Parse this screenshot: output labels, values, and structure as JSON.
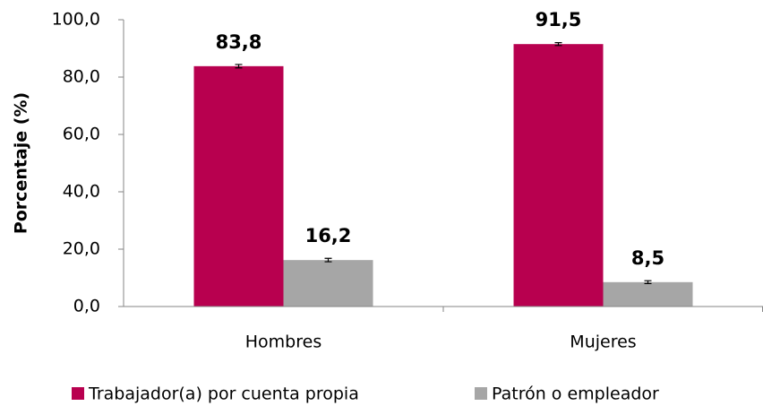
{
  "chart_data": {
    "type": "bar",
    "y_label": "Porcentaje (%)",
    "categories": [
      "Hombres",
      "Mujeres"
    ],
    "series": [
      {
        "name": "Trabajador(a) por cuenta propia",
        "color": "#b8004f",
        "values": [
          83.8,
          91.5
        ],
        "value_labels": [
          "83,8",
          "91,5"
        ],
        "errors": [
          0.6,
          0.5
        ]
      },
      {
        "name": "Patrón o empleador",
        "color": "#a6a6a6",
        "values": [
          16.2,
          8.5
        ],
        "value_labels": [
          "16,2",
          "8,5"
        ],
        "errors": [
          0.6,
          0.5
        ]
      }
    ],
    "ylim": [
      0,
      100
    ],
    "yticks": [
      {
        "value": 0,
        "label": "0,0"
      },
      {
        "value": 20,
        "label": "20,0"
      },
      {
        "value": 40,
        "label": "40,0"
      },
      {
        "value": 60,
        "label": "60,0"
      },
      {
        "value": 80,
        "label": "80,0"
      },
      {
        "value": 100,
        "label": "100,0"
      }
    ],
    "grid": false,
    "legend": "bottom"
  }
}
